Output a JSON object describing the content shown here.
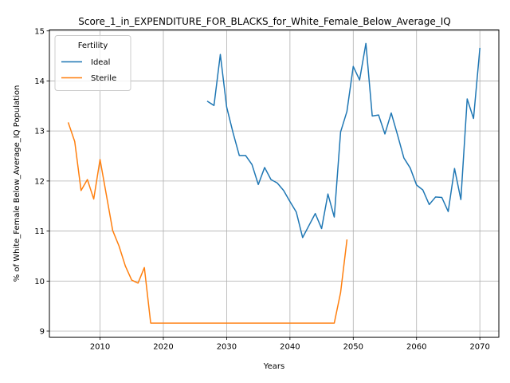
{
  "chart_data": {
    "type": "line",
    "title": "Score_1_in_EXPENDITURE_FOR_BLACKS_for_White_Female_Below_Average_IQ",
    "xlabel": "Years",
    "ylabel": "% of White_Female Below_Average_IQ Population",
    "xlim": [
      2002,
      2073
    ],
    "ylim": [
      8.88,
      15.02
    ],
    "xticks": [
      2010,
      2020,
      2030,
      2040,
      2050,
      2060,
      2070
    ],
    "yticks": [
      9,
      10,
      11,
      12,
      13,
      14,
      15
    ],
    "grid": true,
    "legend": {
      "title": "Fertility",
      "placement": "top-left"
    },
    "series": [
      {
        "name": "Ideal",
        "color": "#1f77b4",
        "x": [
          2027,
          2028,
          2029,
          2030,
          2031,
          2032,
          2033,
          2034,
          2035,
          2036,
          2037,
          2038,
          2039,
          2040,
          2041,
          2042,
          2043,
          2044,
          2045,
          2046,
          2047,
          2048,
          2049,
          2050,
          2051,
          2052,
          2053,
          2054,
          2055,
          2056,
          2057,
          2058,
          2059,
          2060,
          2061,
          2062,
          2063,
          2064,
          2065,
          2066,
          2067,
          2068,
          2069,
          2070
        ],
        "y": [
          13.59,
          13.51,
          14.53,
          13.48,
          12.97,
          12.51,
          12.51,
          12.33,
          11.93,
          12.27,
          12.03,
          11.96,
          11.81,
          11.59,
          11.38,
          10.87,
          11.11,
          11.35,
          11.05,
          11.74,
          11.28,
          12.98,
          13.39,
          14.29,
          14.02,
          14.75,
          13.3,
          13.32,
          12.94,
          13.36,
          12.92,
          12.46,
          12.26,
          11.92,
          11.82,
          11.53,
          11.68,
          11.67,
          11.39,
          12.25,
          11.63,
          13.64,
          13.25,
          14.65
        ]
      },
      {
        "name": "Sterile",
        "color": "#ff7f0e",
        "x": [
          2005,
          2006,
          2007,
          2008,
          2009,
          2010,
          2011,
          2012,
          2013,
          2014,
          2015,
          2016,
          2017,
          2018,
          2019,
          2020,
          2021,
          2022,
          2023,
          2024,
          2025,
          2026,
          2027,
          2028,
          2029,
          2030,
          2031,
          2032,
          2033,
          2034,
          2035,
          2036,
          2037,
          2038,
          2039,
          2040,
          2041,
          2042,
          2043,
          2044,
          2045,
          2046,
          2047,
          2048,
          2049
        ],
        "y": [
          13.16,
          12.79,
          11.81,
          12.03,
          11.64,
          12.43,
          11.72,
          11.01,
          10.7,
          10.3,
          10.02,
          9.96,
          10.27,
          9.16,
          9.16,
          9.16,
          9.16,
          9.16,
          9.16,
          9.16,
          9.16,
          9.16,
          9.16,
          9.16,
          9.16,
          9.16,
          9.16,
          9.16,
          9.16,
          9.16,
          9.16,
          9.16,
          9.16,
          9.16,
          9.16,
          9.16,
          9.16,
          9.16,
          9.16,
          9.16,
          9.16,
          9.16,
          9.16,
          9.77,
          10.82
        ]
      }
    ]
  }
}
